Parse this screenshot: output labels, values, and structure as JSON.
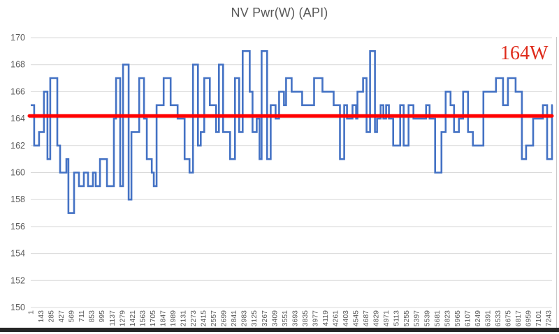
{
  "chart_data": {
    "type": "line",
    "title": "NV Pwr(W) (API)",
    "xlabel": "",
    "ylabel": "",
    "ylim": [
      150,
      170
    ],
    "yticks": [
      150,
      152,
      154,
      156,
      158,
      160,
      162,
      164,
      166,
      168,
      170
    ],
    "grid": true,
    "legend_position": "none",
    "x_tick_labels": [
      "1",
      "143",
      "285",
      "427",
      "569",
      "711",
      "853",
      "995",
      "1137",
      "1279",
      "1421",
      "1563",
      "1705",
      "1847",
      "1989",
      "2131",
      "2273",
      "2415",
      "2557",
      "2699",
      "2841",
      "2983",
      "3125",
      "3267",
      "3409",
      "3551",
      "3693",
      "3835",
      "3977",
      "4119",
      "4261",
      "4403",
      "4545",
      "4687",
      "4829",
      "4971",
      "5113",
      "5255",
      "5397",
      "5539",
      "5681",
      "5823",
      "5965",
      "6107",
      "6249",
      "6391",
      "6533",
      "6675",
      "6817",
      "6959",
      "7101",
      "7243"
    ],
    "x_index_range": [
      1,
      7300
    ],
    "series": [
      {
        "name": "NV Pwr(W) (API)",
        "color": "#4472c4",
        "step_points": [
          [
            1,
            165
          ],
          [
            49,
            162
          ],
          [
            117,
            163
          ],
          [
            186,
            166
          ],
          [
            235,
            161
          ],
          [
            274,
            167
          ],
          [
            372,
            162
          ],
          [
            411,
            160
          ],
          [
            499,
            161
          ],
          [
            528,
            157
          ],
          [
            607,
            160
          ],
          [
            675,
            159
          ],
          [
            744,
            160
          ],
          [
            802,
            159
          ],
          [
            871,
            160
          ],
          [
            910,
            159
          ],
          [
            969,
            161
          ],
          [
            1067,
            159
          ],
          [
            1164,
            164
          ],
          [
            1194,
            167
          ],
          [
            1252,
            159
          ],
          [
            1292,
            168
          ],
          [
            1370,
            158
          ],
          [
            1409,
            163
          ],
          [
            1517,
            167
          ],
          [
            1585,
            164
          ],
          [
            1624,
            161
          ],
          [
            1693,
            160
          ],
          [
            1722,
            159
          ],
          [
            1761,
            165
          ],
          [
            1859,
            167
          ],
          [
            1957,
            165
          ],
          [
            2055,
            164
          ],
          [
            2153,
            161
          ],
          [
            2221,
            160
          ],
          [
            2270,
            168
          ],
          [
            2339,
            162
          ],
          [
            2378,
            163
          ],
          [
            2427,
            167
          ],
          [
            2505,
            165
          ],
          [
            2593,
            163
          ],
          [
            2632,
            168
          ],
          [
            2691,
            163
          ],
          [
            2789,
            161
          ],
          [
            2857,
            167
          ],
          [
            2916,
            163
          ],
          [
            2965,
            169
          ],
          [
            3063,
            166
          ],
          [
            3102,
            163
          ],
          [
            3161,
            164
          ],
          [
            3200,
            161
          ],
          [
            3229,
            169
          ],
          [
            3307,
            161
          ],
          [
            3356,
            165
          ],
          [
            3425,
            164
          ],
          [
            3474,
            166
          ],
          [
            3542,
            165
          ],
          [
            3571,
            167
          ],
          [
            3650,
            166
          ],
          [
            3796,
            165
          ],
          [
            3963,
            167
          ],
          [
            4080,
            166
          ],
          [
            4237,
            165
          ],
          [
            4325,
            161
          ],
          [
            4384,
            165
          ],
          [
            4423,
            164
          ],
          [
            4501,
            165
          ],
          [
            4550,
            164
          ],
          [
            4570,
            166
          ],
          [
            4648,
            167
          ],
          [
            4697,
            163
          ],
          [
            4746,
            169
          ],
          [
            4814,
            163
          ],
          [
            4844,
            164
          ],
          [
            4893,
            165
          ],
          [
            4932,
            164
          ],
          [
            4971,
            165
          ],
          [
            5010,
            164
          ],
          [
            5069,
            162
          ],
          [
            5167,
            165
          ],
          [
            5216,
            162
          ],
          [
            5284,
            165
          ],
          [
            5353,
            164
          ],
          [
            5529,
            165
          ],
          [
            5578,
            164
          ],
          [
            5656,
            160
          ],
          [
            5744,
            163
          ],
          [
            5803,
            166
          ],
          [
            5871,
            165
          ],
          [
            5920,
            163
          ],
          [
            5989,
            164
          ],
          [
            6047,
            166
          ],
          [
            6116,
            163
          ],
          [
            6184,
            162
          ],
          [
            6331,
            166
          ],
          [
            6507,
            167
          ],
          [
            6605,
            165
          ],
          [
            6674,
            167
          ],
          [
            6781,
            166
          ],
          [
            6869,
            161
          ],
          [
            6928,
            162
          ],
          [
            7026,
            164
          ],
          [
            7163,
            165
          ],
          [
            7222,
            161
          ],
          [
            7290,
            165
          ],
          [
            7300,
            165
          ]
        ]
      }
    ],
    "target_line": {
      "value": 164.2,
      "color": "#ff0000"
    },
    "annotation": {
      "text": "164W",
      "color": "#df2b1b"
    }
  },
  "colors": {
    "gridline": "#d9d9d9",
    "tick_label": "#595959",
    "title": "#595959",
    "background": "#ffffff"
  }
}
